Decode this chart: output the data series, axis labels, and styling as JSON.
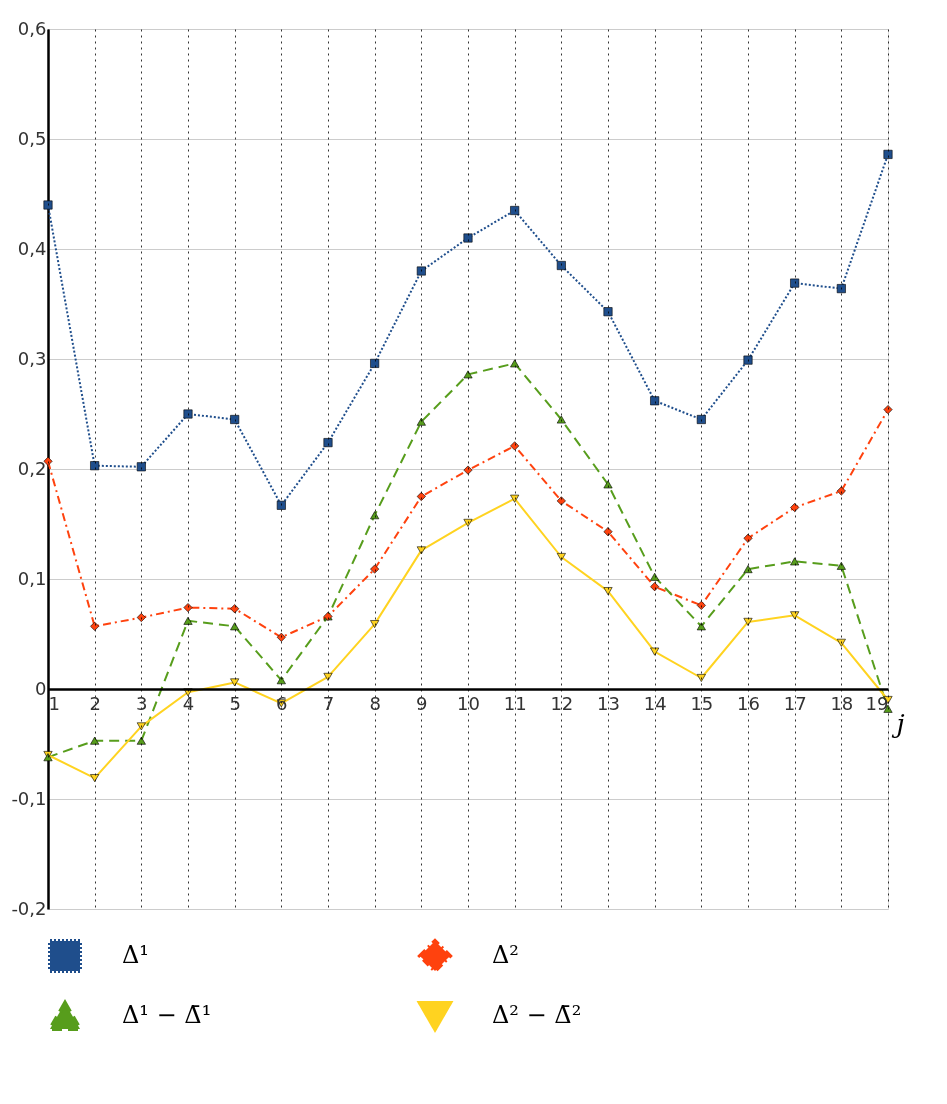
{
  "chart_data": {
    "type": "line",
    "xlabel": "j",
    "x": [
      1,
      2,
      3,
      4,
      5,
      6,
      7,
      8,
      9,
      10,
      11,
      12,
      13,
      14,
      15,
      16,
      17,
      18,
      19
    ],
    "series": [
      {
        "name": "Δ¹",
        "color": "#1f4e8c",
        "marker": "square",
        "line_style": "dotted",
        "values": [
          0.44,
          0.203,
          0.202,
          0.25,
          0.245,
          0.167,
          0.224,
          0.296,
          0.38,
          0.41,
          0.435,
          0.385,
          0.343,
          0.262,
          0.245,
          0.299,
          0.369,
          0.364,
          0.486
        ]
      },
      {
        "name": "Δ²",
        "color": "#ff420e",
        "marker": "diamond",
        "line_style": "dashdot",
        "values": [
          0.207,
          0.057,
          0.065,
          0.074,
          0.073,
          0.047,
          0.066,
          0.109,
          0.175,
          0.199,
          0.221,
          0.171,
          0.143,
          0.093,
          0.076,
          0.137,
          0.165,
          0.18,
          0.254
        ]
      },
      {
        "name": "Δ¹ − Δ̄¹",
        "color": "#579d1c",
        "marker": "triangle",
        "line_style": "dashed",
        "values": [
          -0.062,
          -0.047,
          -0.047,
          0.062,
          0.057,
          0.008,
          0.066,
          0.158,
          0.243,
          0.286,
          0.296,
          0.245,
          0.186,
          0.102,
          0.057,
          0.109,
          0.116,
          0.112,
          -0.018
        ]
      },
      {
        "name": "Δ² − Δ̄²",
        "color": "#ffd320",
        "marker": "triangle-down",
        "line_style": "solid",
        "values": [
          -0.06,
          -0.081,
          -0.034,
          -0.003,
          0.006,
          -0.013,
          0.011,
          0.059,
          0.126,
          0.151,
          0.173,
          0.12,
          0.089,
          0.034,
          0.01,
          0.061,
          0.067,
          0.042,
          -0.01
        ]
      }
    ],
    "xlim": [
      1,
      19
    ],
    "xticks": [
      1,
      2,
      3,
      4,
      5,
      6,
      7,
      8,
      9,
      10,
      11,
      12,
      13,
      14,
      15,
      16,
      17,
      18,
      19
    ],
    "ylim": [
      -0.2,
      0.6
    ],
    "yticks": [
      {
        "value": -0.2,
        "label": "-0,2"
      },
      {
        "value": -0.1,
        "label": "-0,1"
      },
      0,
      {
        "value": 0.1,
        "label": "0,1"
      },
      {
        "value": 0.2,
        "label": "0,2"
      },
      {
        "value": 0.3,
        "label": "0,3"
      },
      {
        "value": 0.4,
        "label": "0,4"
      },
      {
        "value": 0.5,
        "label": "0,5"
      },
      {
        "value": 0.6,
        "label": "0,6"
      }
    ],
    "grid": true,
    "legend": "bottom"
  }
}
